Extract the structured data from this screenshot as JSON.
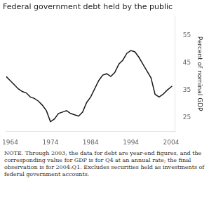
{
  "chart_data": {
    "type": "line",
    "title": "Federal government debt held by the public",
    "ylabel": "Percent of nominal GDP",
    "note": "NOTE.  Through 2003, the data for debt are year-end figures, and the corresponding value for GDP is for Q4 at an annual rate; the final observation is for 2004:Q1.  Excludes securities held as investments of federal government accounts.",
    "x": [
      1963,
      1964,
      1965,
      1966,
      1967,
      1968,
      1969,
      1970,
      1971,
      1972,
      1973,
      1974,
      1975,
      1976,
      1977,
      1978,
      1979,
      1980,
      1981,
      1982,
      1983,
      1984,
      1985,
      1986,
      1987,
      1988,
      1989,
      1990,
      1991,
      1992,
      1993,
      1994,
      1995,
      1996,
      1997,
      1998,
      1999,
      2000,
      2001,
      2002,
      2003,
      2004.25
    ],
    "values": [
      40.0,
      38.5,
      37.0,
      35.5,
      34.5,
      34.0,
      32.5,
      32.0,
      31.0,
      29.5,
      27.5,
      23.5,
      24.5,
      26.5,
      27.0,
      27.5,
      26.5,
      26.0,
      25.5,
      27.0,
      30.5,
      32.5,
      35.5,
      38.5,
      40.5,
      41.0,
      40.0,
      41.5,
      44.5,
      46.0,
      48.5,
      49.5,
      49.0,
      47.0,
      44.5,
      42.0,
      39.5,
      33.5,
      32.5,
      33.5,
      35.0,
      36.5
    ],
    "color": "#1a1a1a",
    "xlim": [
      1963,
      2005
    ],
    "ylim": [
      20,
      62
    ],
    "xticks": [
      1964,
      1974,
      1984,
      1994,
      2004
    ],
    "yticks": [
      25,
      35,
      45,
      55
    ],
    "grid": false
  }
}
